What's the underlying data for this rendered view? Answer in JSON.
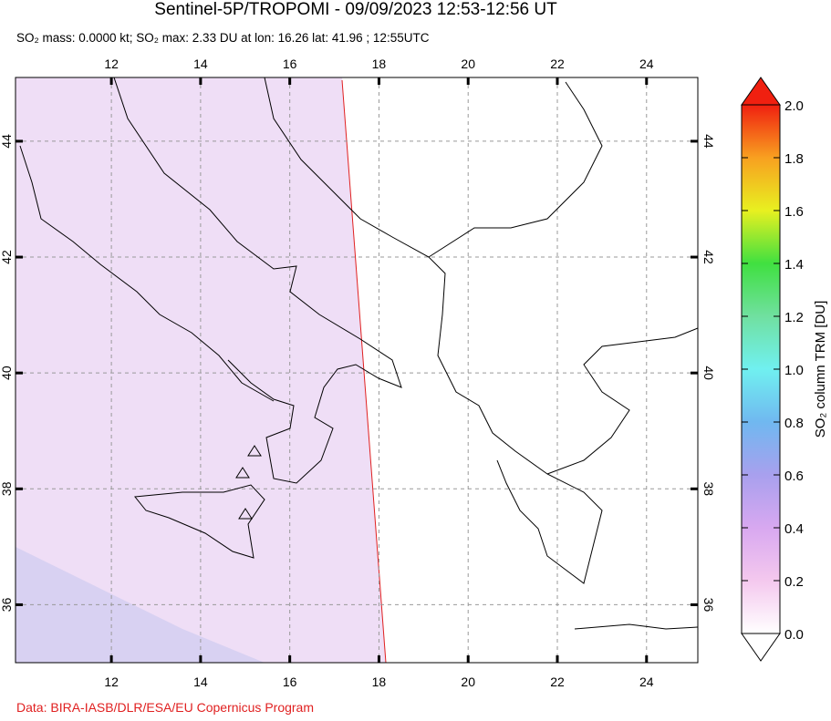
{
  "title": "Sentinel-5P/TROPOMI - 09/09/2023 12:53-12:56 UT",
  "subtitle": "SO₂ mass: 0.0000 kt; SO₂ max: 2.33 DU at lon: 16.26 lat: 41.96 ; 12:55UTC",
  "map": {
    "xlim": [
      9.85,
      25.15
    ],
    "ylim": [
      35.0,
      45.1
    ],
    "xticks": [
      12,
      14,
      16,
      18,
      20,
      22,
      24
    ],
    "yticks": [
      36,
      38,
      40,
      42,
      44
    ],
    "grid": true
  },
  "colorbar": {
    "label": "SO₂ column TRM [DU]",
    "lim": [
      0,
      2
    ],
    "ticks": [
      {
        "value": 0,
        "label": "0.0"
      },
      {
        "value": 0.2,
        "label": "0.2"
      },
      {
        "value": 0.4,
        "label": "0.4"
      },
      {
        "value": 0.6,
        "label": "0.6"
      },
      {
        "value": 0.8,
        "label": "0.8"
      },
      {
        "value": 1.0,
        "label": "1.0"
      },
      {
        "value": 1.2,
        "label": "1.2"
      },
      {
        "value": 1.4,
        "label": "1.4"
      },
      {
        "value": 1.6,
        "label": "1.6"
      },
      {
        "value": 1.8,
        "label": "1.8"
      },
      {
        "value": 2.0,
        "label": "2.0"
      }
    ],
    "colors": [
      "#ffffff",
      "#f4c8ee",
      "#d8a8f0",
      "#a8a0ee",
      "#70b8f0",
      "#70f0f0",
      "#70e0a0",
      "#40e040",
      "#e8f020",
      "#f8a020",
      "#f02010"
    ]
  },
  "credit": "Data: BIRA-IASB/DLR/ESA/EU Copernicus Program"
}
